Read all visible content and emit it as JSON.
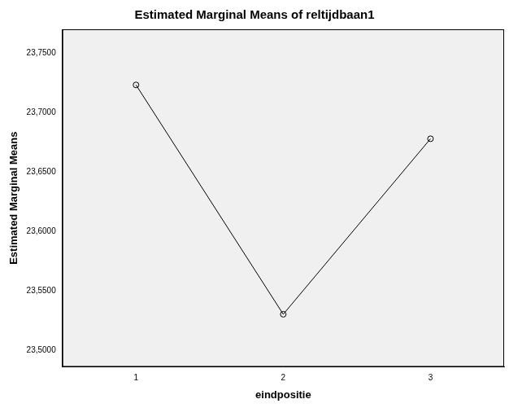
{
  "chart_data": {
    "type": "line",
    "title": "Estimated Marginal Means of reltijdbaan1",
    "x_label": "eindpositie",
    "y_label": "Estimated Marginal Means",
    "categories": [
      "1",
      "2",
      "3"
    ],
    "values": [
      23.7232,
      23.5302,
      23.6779
    ],
    "color": "#000000",
    "marker": "circle",
    "line_style": "solid",
    "ylim": [
      23.486,
      23.77
    ],
    "yticks": [
      {
        "value": 23.5,
        "label": "23,5000"
      },
      {
        "value": 23.55,
        "label": "23,5500"
      },
      {
        "value": 23.6,
        "label": "23,6000"
      },
      {
        "value": 23.65,
        "label": "23,6500"
      },
      {
        "value": 23.7,
        "label": "23,7000"
      },
      {
        "value": 23.75,
        "label": "23,7500"
      }
    ],
    "grid": false
  }
}
